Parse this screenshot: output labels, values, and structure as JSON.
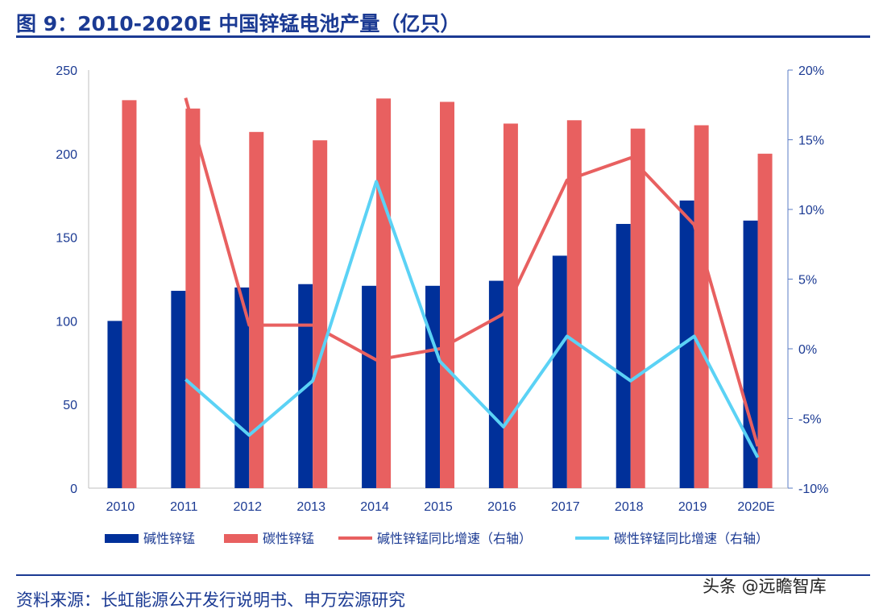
{
  "title": "图 9：2010-2020E 中国锌锰电池产量（亿只）",
  "source": "资料来源：长虹能源公开发行说明书、申万宏源研究",
  "watermark": "头条 @远瞻智库",
  "chart_data": {
    "type": "bar+line",
    "categories": [
      "2010",
      "2011",
      "2012",
      "2013",
      "2014",
      "2015",
      "2016",
      "2017",
      "2018",
      "2019",
      "2020E"
    ],
    "left_axis": {
      "ylim": [
        0,
        250
      ],
      "ticks": [
        0,
        50,
        100,
        150,
        200,
        250
      ]
    },
    "right_axis": {
      "ylim": [
        -10,
        20
      ],
      "ticks": [
        "-10%",
        "-5%",
        "0%",
        "5%",
        "10%",
        "15%",
        "20%"
      ]
    },
    "grid": false,
    "legend_position": "bottom",
    "series": [
      {
        "name": "碱性锌锰",
        "type": "bar",
        "axis": "left",
        "color": "#00309a",
        "values": [
          100,
          118,
          120,
          122,
          121,
          121,
          124,
          139,
          158,
          172,
          160
        ]
      },
      {
        "name": "碳性锌锰",
        "type": "bar",
        "axis": "left",
        "color": "#e86060",
        "values": [
          232,
          227,
          213,
          208,
          233,
          231,
          218,
          220,
          215,
          217,
          200
        ]
      },
      {
        "name": "碱性锌锰同比增速（右轴）",
        "type": "line",
        "axis": "right",
        "color": "#e86060",
        "values": [
          null,
          18.0,
          1.7,
          1.7,
          -0.8,
          0.0,
          2.5,
          12.1,
          13.7,
          8.9,
          -7.0
        ]
      },
      {
        "name": "碳性锌锰同比增速（右轴）",
        "type": "line",
        "axis": "right",
        "color": "#5bd2f5",
        "values": [
          null,
          -2.2,
          -6.2,
          -2.3,
          12.0,
          -0.9,
          -5.6,
          0.9,
          -2.3,
          0.9,
          -7.8
        ]
      }
    ]
  }
}
